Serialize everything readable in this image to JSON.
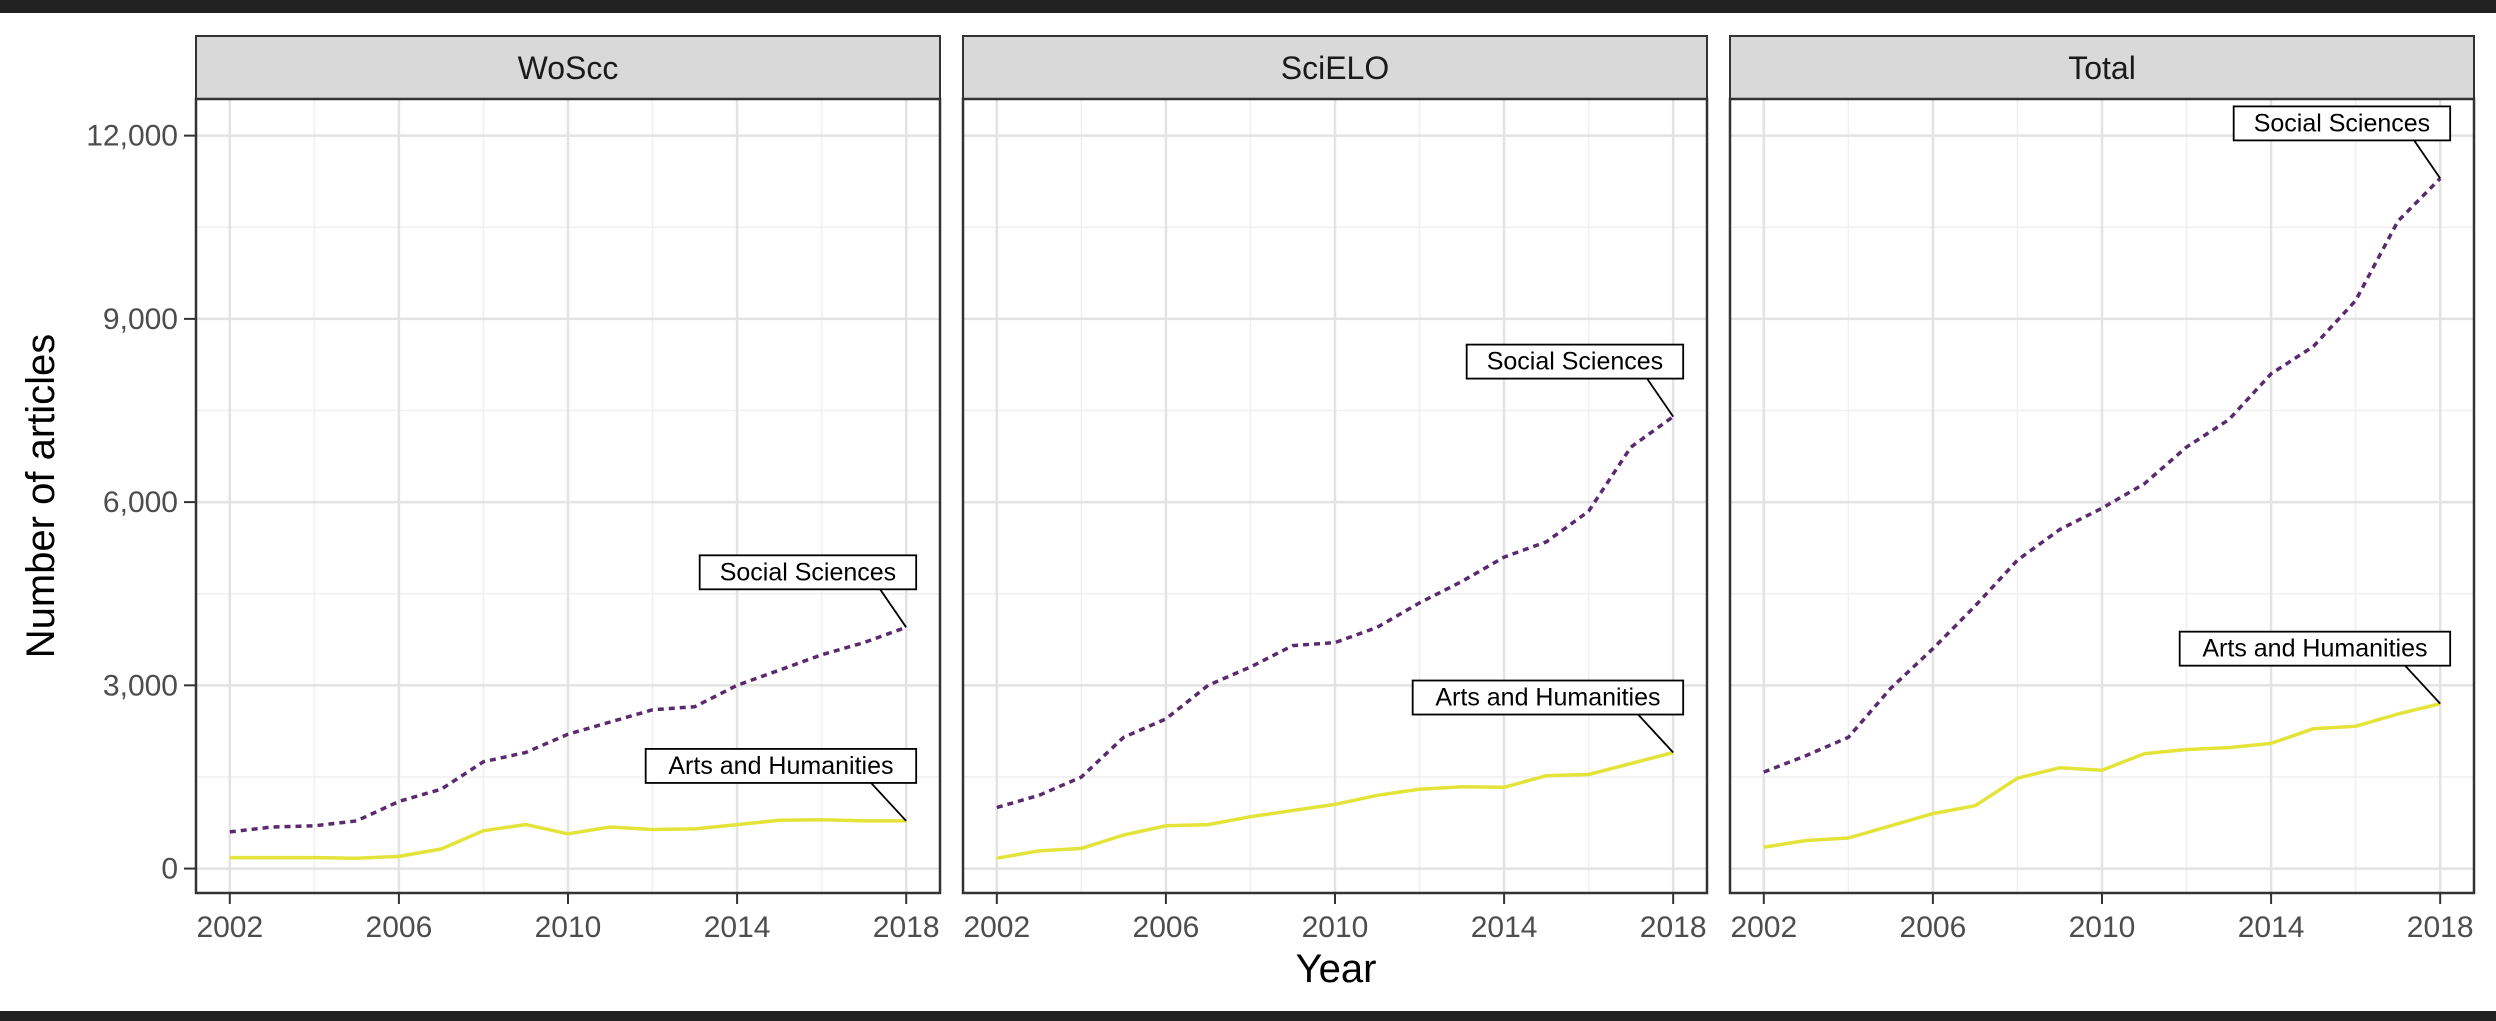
{
  "chart_data": {
    "type": "line",
    "xlabel": "Year",
    "ylabel": "Number of articles",
    "xlim": [
      2001.2,
      2018.8
    ],
    "ylim": [
      -400,
      12600
    ],
    "x_ticks": [
      2002,
      2006,
      2010,
      2014,
      2018
    ],
    "y_ticks": [
      0,
      3000,
      6000,
      9000,
      12000
    ],
    "y_tick_labels": [
      "0",
      "3,000",
      "6,000",
      "9,000",
      "12,000"
    ],
    "grid": true,
    "legend": "none",
    "colors": {
      "Social Sciences": "#5b2a6e",
      "Arts and Humanities": "#e3e33a"
    },
    "x": [
      2002,
      2003,
      2004,
      2005,
      2006,
      2007,
      2008,
      2009,
      2010,
      2011,
      2012,
      2013,
      2014,
      2015,
      2016,
      2017,
      2018
    ],
    "panels": [
      {
        "title": "WoScc",
        "series": [
          {
            "name": "Social Sciences",
            "style": "dashed",
            "values": [
              600,
              680,
              700,
              780,
              1100,
              1300,
              1750,
              1900,
              2200,
              2400,
              2600,
              2650,
              3000,
              3250,
              3500,
              3700,
              3950
            ]
          },
          {
            "name": "Arts and Humanities",
            "style": "solid",
            "values": [
              180,
              180,
              180,
              170,
              200,
              320,
              620,
              720,
              570,
              680,
              640,
              650,
              720,
              790,
              800,
              780,
              780
            ]
          }
        ]
      },
      {
        "title": "SciELO",
        "series": [
          {
            "name": "Social Sciences",
            "style": "dashed",
            "values": [
              1000,
              1200,
              1500,
              2150,
              2450,
              3000,
              3300,
              3650,
              3700,
              3950,
              4350,
              4700,
              5100,
              5350,
              5850,
              6900,
              7400
            ]
          },
          {
            "name": "Arts and Humanities",
            "style": "solid",
            "values": [
              170,
              290,
              330,
              550,
              700,
              720,
              850,
              950,
              1050,
              1200,
              1300,
              1340,
              1330,
              1520,
              1540,
              1720,
              1900
            ]
          }
        ]
      },
      {
        "title": "Total",
        "series": [
          {
            "name": "Social Sciences",
            "style": "dashed",
            "values": [
              1580,
              1850,
              2150,
              2950,
              3600,
              4300,
              5050,
              5550,
              5900,
              6300,
              6900,
              7350,
              8100,
              8550,
              9300,
              10600,
              11300
            ]
          },
          {
            "name": "Arts and Humanities",
            "style": "solid",
            "values": [
              350,
              460,
              500,
              700,
              900,
              1030,
              1480,
              1650,
              1610,
              1880,
              1950,
              1980,
              2050,
              2290,
              2330,
              2530,
              2700
            ]
          }
        ]
      }
    ]
  }
}
